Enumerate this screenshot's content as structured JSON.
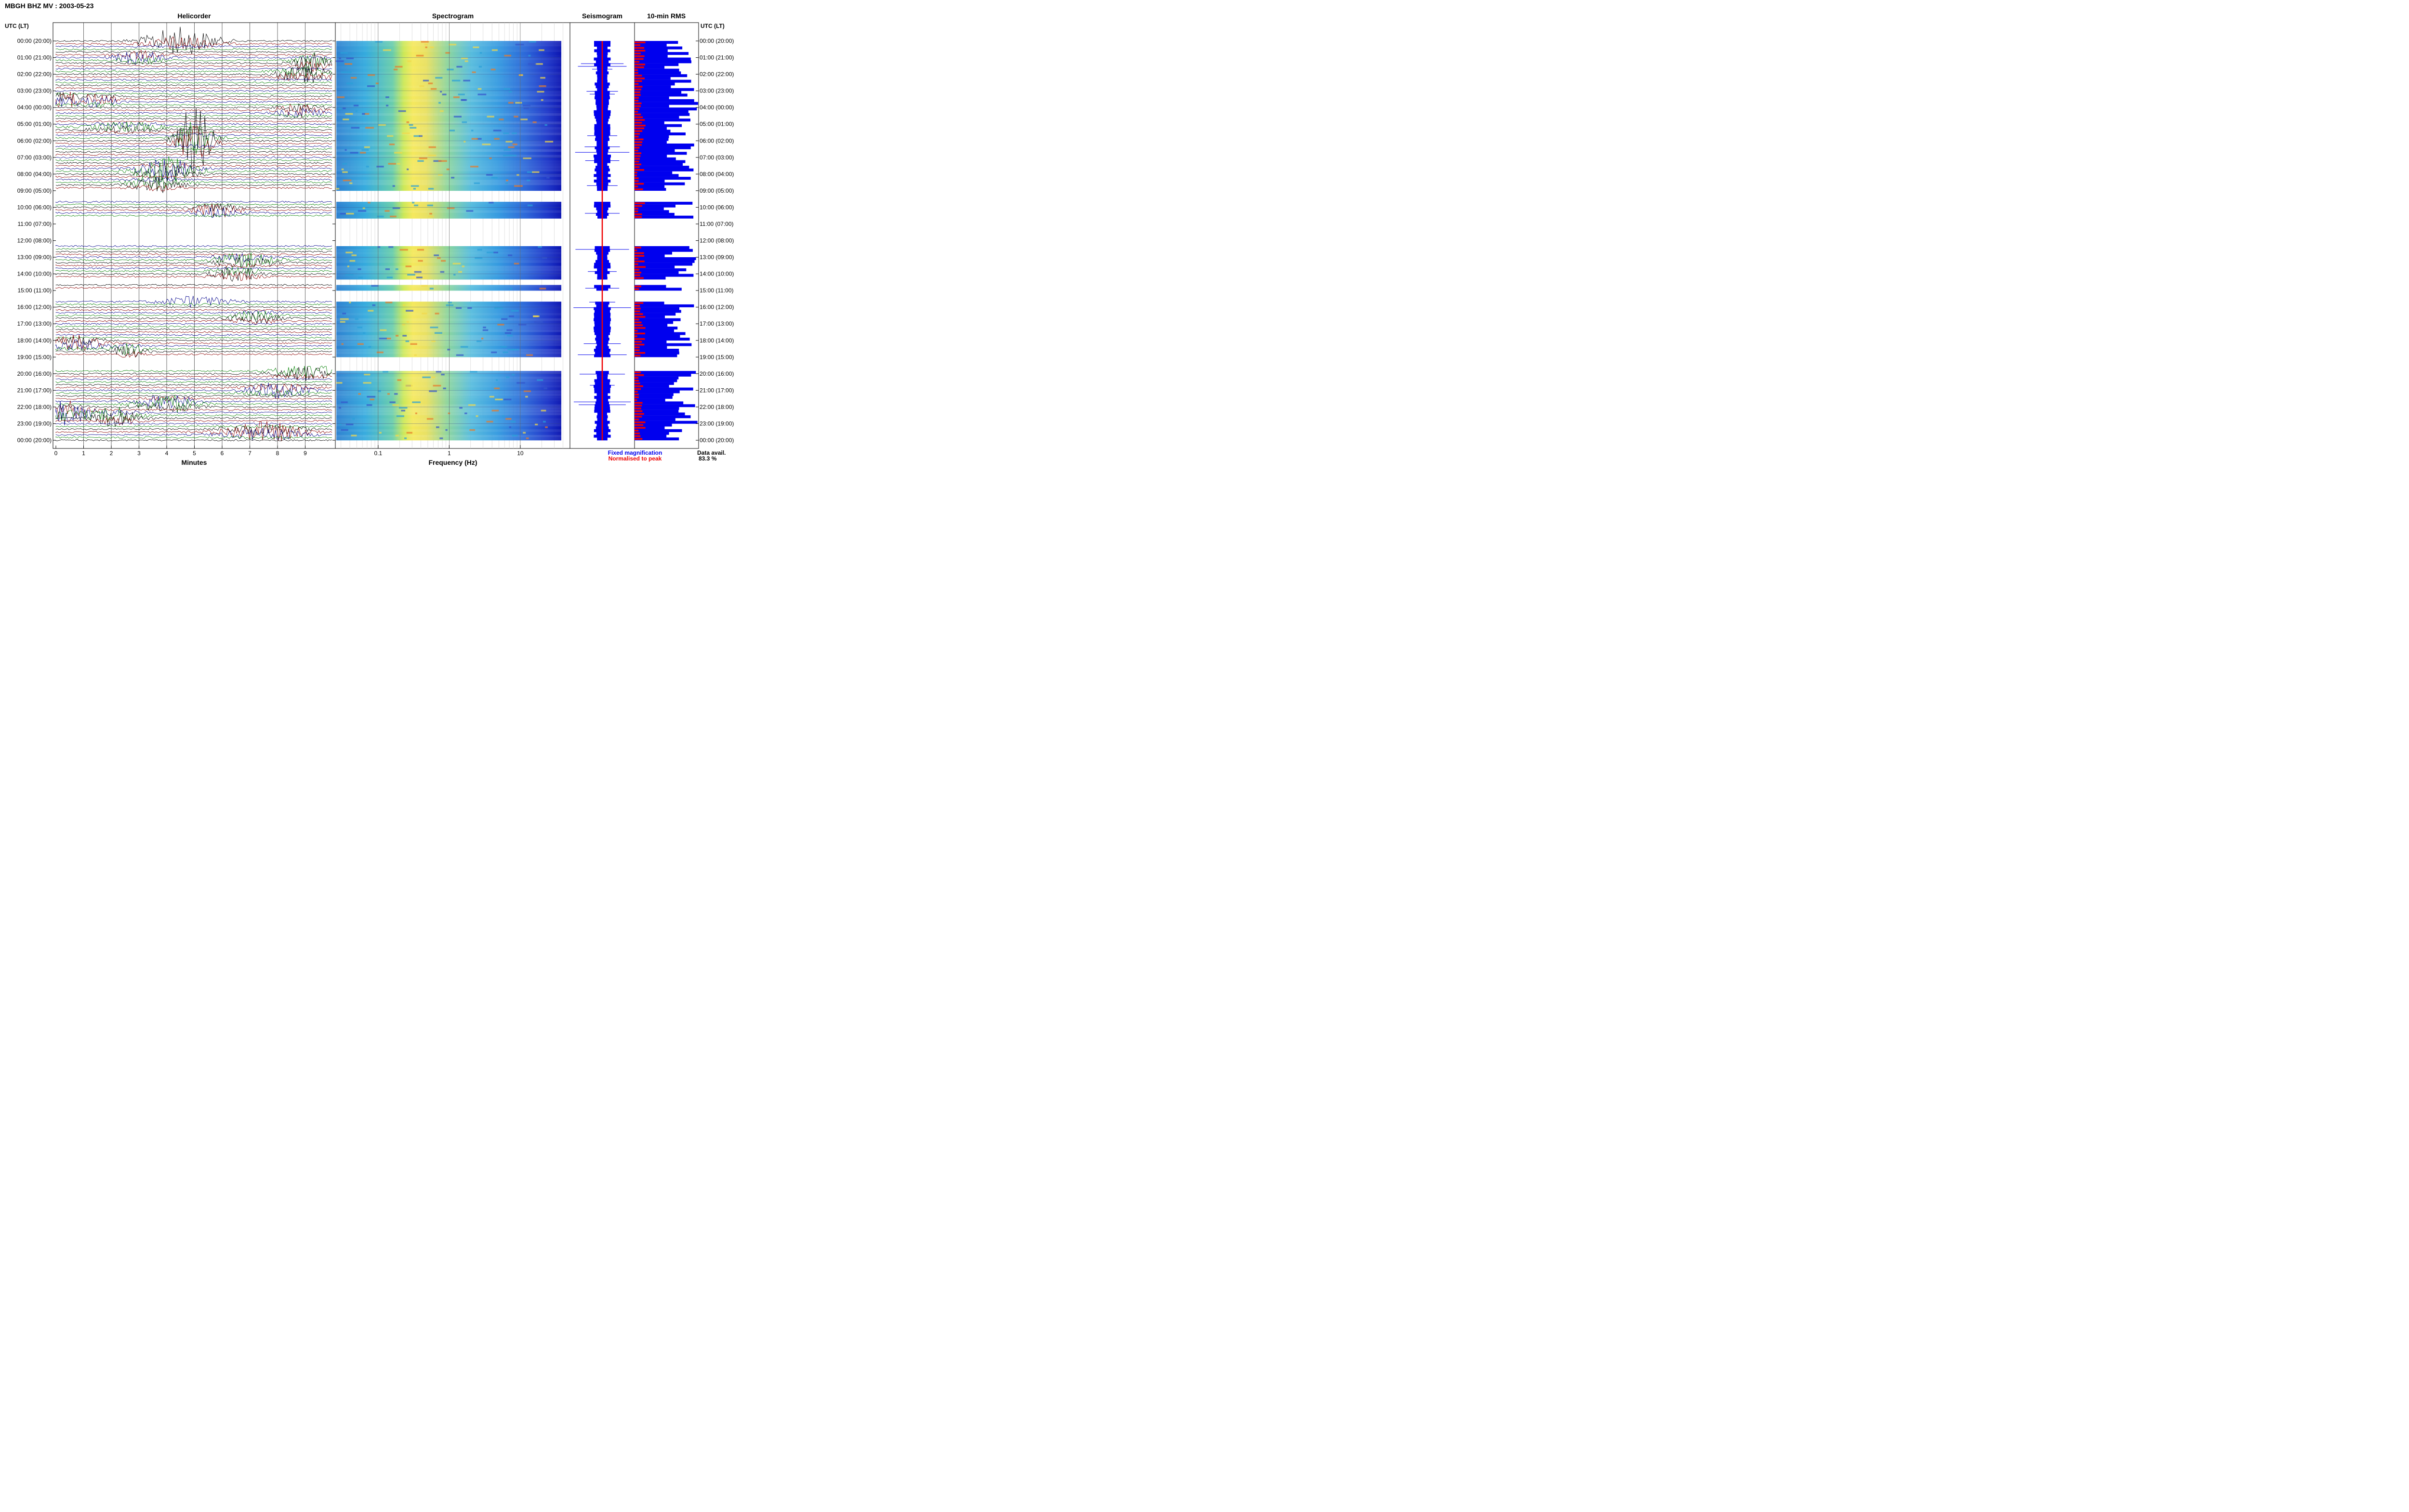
{
  "header": {
    "station_title": "MBGH BHZ MV : 2003-05-23"
  },
  "panels": {
    "helicorder_title": "Helicorder",
    "spectrogram_title": "Spectrogram",
    "seismogram_title": "Seismogram",
    "rms_title": "10-min RMS",
    "utc_lt_label_left": "UTC (LT)",
    "utc_lt_label_right": "UTC (LT)"
  },
  "footer": {
    "xlabel_minutes": "Minutes",
    "xlabel_frequency": "Frequency (Hz)",
    "legend_fixed": "Fixed magnification",
    "legend_normalised": "Normalised to peak",
    "data_avail_label": "Data avail.",
    "data_avail_value": "83.3 %"
  },
  "colors": {
    "trace_black": "#000000",
    "trace_red": "#8b0000",
    "trace_blue": "#00008b",
    "trace_green": "#008000",
    "rms_fixed": "#0000ee",
    "rms_normalised": "#ee0000",
    "legend_fixed": "#0000ee",
    "legend_normalised": "#ee0000"
  },
  "chart_data": {
    "type": "helicorder",
    "time_labels": [
      "00:00 (20:00)",
      "01:00 (21:00)",
      "02:00 (22:00)",
      "03:00 (23:00)",
      "04:00 (00:00)",
      "05:00 (01:00)",
      "06:00 (02:00)",
      "07:00 (03:00)",
      "08:00 (04:00)",
      "09:00 (05:00)",
      "10:00 (06:00)",
      "11:00 (07:00)",
      "12:00 (08:00)",
      "13:00 (09:00)",
      "14:00 (10:00)",
      "15:00 (11:00)",
      "16:00 (12:00)",
      "17:00 (13:00)",
      "18:00 (14:00)",
      "19:00 (15:00)",
      "20:00 (16:00)",
      "21:00 (17:00)",
      "22:00 (18:00)",
      "23:00 (19:00)",
      "00:00 (20:00)"
    ],
    "minutes_ticks": [
      "0",
      "1",
      "2",
      "3",
      "4",
      "5",
      "6",
      "7",
      "8",
      "9"
    ],
    "minutes_range": [
      0,
      10
    ],
    "frequency_ticks": [
      "0.1",
      "1",
      "10"
    ],
    "frequency_range_hz": [
      0.025,
      50
    ],
    "frequency_scale": "log",
    "data_gaps_hours": [
      [
        9.0,
        9.6
      ],
      [
        10.6,
        12.3
      ],
      [
        14.3,
        14.6
      ],
      [
        14.9,
        15.6
      ],
      [
        19.0,
        19.7
      ]
    ],
    "events": [
      {
        "hour": 0.0,
        "minute": 4.5,
        "amp": 1.3,
        "width": 1.2,
        "color": "red"
      },
      {
        "hour": 1.0,
        "minute": 3.0,
        "amp": 0.7,
        "width": 0.8,
        "color": "green"
      },
      {
        "hour": 1.3,
        "minute": 9.2,
        "amp": 1.1,
        "width": 0.6,
        "color": "black"
      },
      {
        "hour": 2.0,
        "minute": 9.0,
        "amp": 0.9,
        "width": 0.9,
        "color": "black"
      },
      {
        "hour": 3.5,
        "minute": 0.3,
        "amp": 0.8,
        "width": 0.7,
        "color": "green"
      },
      {
        "hour": 3.6,
        "minute": 1.6,
        "amp": 0.6,
        "width": 0.6,
        "color": "green"
      },
      {
        "hour": 4.2,
        "minute": 8.8,
        "amp": 0.7,
        "width": 0.8,
        "color": "green"
      },
      {
        "hour": 5.2,
        "minute": 2.5,
        "amp": 0.5,
        "width": 1.2,
        "color": "black"
      },
      {
        "hour": 6.0,
        "minute": 5.0,
        "amp": 3.5,
        "width": 0.6,
        "color": "blue"
      },
      {
        "hour": 7.8,
        "minute": 4.0,
        "amp": 1.5,
        "width": 1.0,
        "color": "black"
      },
      {
        "hour": 8.6,
        "minute": 3.6,
        "amp": 0.9,
        "width": 0.9,
        "color": "black"
      },
      {
        "hour": 10.2,
        "minute": 5.8,
        "amp": 0.8,
        "width": 0.8,
        "color": "green"
      },
      {
        "hour": 13.2,
        "minute": 6.8,
        "amp": 0.8,
        "width": 1.0,
        "color": "red"
      },
      {
        "hour": 14.0,
        "minute": 6.5,
        "amp": 0.7,
        "width": 0.8,
        "color": "red"
      },
      {
        "hour": 15.5,
        "minute": 5.0,
        "amp": 1.0,
        "width": 1.2,
        "color": "green"
      },
      {
        "hour": 16.6,
        "minute": 7.2,
        "amp": 0.8,
        "width": 0.8,
        "color": "red"
      },
      {
        "hour": 18.2,
        "minute": 0.7,
        "amp": 0.9,
        "width": 0.9,
        "color": "green"
      },
      {
        "hour": 18.6,
        "minute": 2.6,
        "amp": 0.7,
        "width": 0.6,
        "color": "black"
      },
      {
        "hour": 19.9,
        "minute": 9.0,
        "amp": 0.9,
        "width": 1.0,
        "color": "black"
      },
      {
        "hour": 21.0,
        "minute": 8.0,
        "amp": 0.8,
        "width": 1.0,
        "color": "black"
      },
      {
        "hour": 21.8,
        "minute": 4.0,
        "amp": 1.0,
        "width": 1.0,
        "color": "red"
      },
      {
        "hour": 22.3,
        "minute": 0.4,
        "amp": 1.3,
        "width": 0.8,
        "color": "green"
      },
      {
        "hour": 22.6,
        "minute": 2.2,
        "amp": 1.1,
        "width": 0.8,
        "color": "black"
      },
      {
        "hour": 23.5,
        "minute": 7.5,
        "amp": 1.0,
        "width": 1.4,
        "color": "green"
      }
    ],
    "spectral_lines_hz": [
      2.5,
      3.5,
      7.0
    ]
  }
}
